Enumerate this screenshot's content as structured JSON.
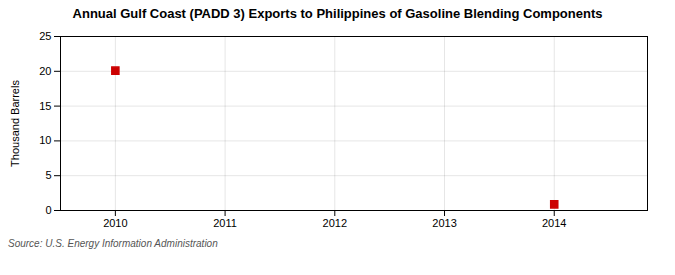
{
  "chart_data": {
    "type": "scatter",
    "title": "Annual Gulf Coast (PADD 3) Exports to Philippines of Gasoline Blending Components",
    "ylabel": "Thousand Barrels",
    "source": "Source: U.S. Energy Information Administration",
    "x": [
      2010,
      2014
    ],
    "values": [
      20.093,
      0.876
    ],
    "color": "#cc0000",
    "marker": "square",
    "xlim": [
      2009.5,
      2014.85
    ],
    "ylim": [
      0,
      25
    ],
    "xticks": [
      2010,
      2011,
      2012,
      2013,
      2014
    ],
    "yticks": [
      0,
      5,
      10,
      15,
      20,
      25
    ],
    "grid": true
  }
}
